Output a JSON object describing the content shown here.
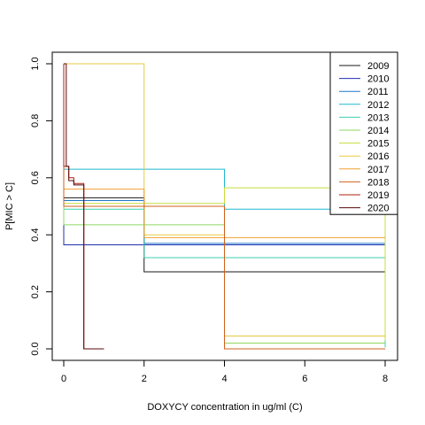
{
  "chart_data": {
    "type": "line",
    "subtype": "step-survival",
    "xlabel": "DOXYCY concentration in ug/ml (C)",
    "ylabel": "P[MIC > C]",
    "xlim": [
      0,
      8
    ],
    "ylim": [
      0,
      1
    ],
    "x_ticks": [
      "0",
      "2",
      "4",
      "6",
      "8"
    ],
    "y_ticks": [
      "0.0",
      "0.2",
      "0.4",
      "0.6",
      "0.8",
      "1.0"
    ],
    "grid": false,
    "legend_position": "top-right",
    "series": [
      {
        "name": "2009",
        "color": "#1a1a1a",
        "x": [
          0,
          2,
          4,
          8
        ],
        "y": [
          0.53,
          0.27,
          0.27,
          0.27
        ]
      },
      {
        "name": "2010",
        "color": "#1f2fb0",
        "x": [
          0,
          2,
          4,
          8
        ],
        "y": [
          0.365,
          0.365,
          0.365,
          0.365
        ]
      },
      {
        "name": "2011",
        "color": "#1f78c8",
        "x": [
          0,
          2,
          4,
          8
        ],
        "y": [
          0.52,
          0.37,
          0.37,
          0.37
        ]
      },
      {
        "name": "2012",
        "color": "#1fb8d0",
        "x": [
          0,
          2,
          4,
          8
        ],
        "y": [
          0.63,
          0.63,
          0.49,
          0.49
        ]
      },
      {
        "name": "2013",
        "color": "#3ccfb0",
        "x": [
          0,
          2,
          4,
          8
        ],
        "y": [
          0.49,
          0.32,
          0.32,
          0.005
        ]
      },
      {
        "name": "2014",
        "color": "#8fd860",
        "x": [
          0,
          2,
          4,
          8
        ],
        "y": [
          0.435,
          0.435,
          0.02,
          0.02
        ]
      },
      {
        "name": "2015",
        "color": "#c8dc3c",
        "x": [
          0,
          2,
          4,
          8
        ],
        "y": [
          0.51,
          0.51,
          0.565,
          0.03
        ]
      },
      {
        "name": "2016",
        "color": "#e8c840",
        "x": [
          0,
          2,
          4,
          8
        ],
        "y": [
          1.0,
          0.4,
          0.045,
          0.045
        ]
      },
      {
        "name": "2017",
        "color": "#f0a030",
        "x": [
          0,
          2,
          4,
          8
        ],
        "y": [
          0.56,
          0.39,
          0.39,
          0.39
        ]
      },
      {
        "name": "2018",
        "color": "#d0601c",
        "x": [
          0,
          2,
          4,
          8
        ],
        "y": [
          0.5,
          0.5,
          0.0,
          0.0
        ]
      },
      {
        "name": "2019",
        "color": "#a82010",
        "x": [
          0,
          0.125,
          0.25,
          0.5,
          1
        ],
        "y": [
          0.64,
          0.6,
          0.58,
          0.0,
          0.0
        ]
      },
      {
        "name": "2020",
        "color": "#5a0808",
        "x": [
          0,
          0.0625,
          0.125,
          0.25,
          0.5,
          1
        ],
        "y": [
          1.0,
          0.64,
          0.59,
          0.575,
          0.0,
          0.0
        ]
      }
    ]
  }
}
